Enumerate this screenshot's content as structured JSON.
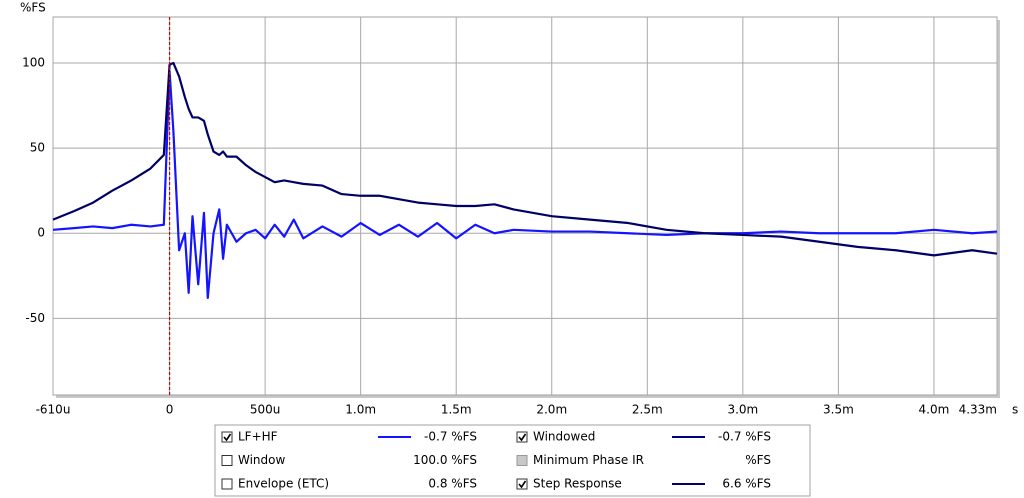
{
  "chart_data": {
    "type": "line",
    "y_label": "%FS",
    "x_label": "s",
    "xlim": [
      -0.61,
      4.33
    ],
    "ylim": [
      -95,
      127
    ],
    "xticks": [
      {
        "value": -0.61,
        "label": "-610u"
      },
      0,
      {
        "value": 0.5,
        "label": "500u"
      },
      {
        "value": 1,
        "label": "1.0m"
      },
      {
        "value": 1.5,
        "label": "1.5m"
      },
      {
        "value": 2,
        "label": "2.0m"
      },
      {
        "value": 2.5,
        "label": "2.5m"
      },
      {
        "value": 3,
        "label": "3.0m"
      },
      {
        "value": 3.5,
        "label": "3.5m"
      },
      {
        "value": 4,
        "label": "4.0m"
      },
      {
        "value": 4.33,
        "label": "4.33m"
      }
    ],
    "yticks": [
      -50,
      0,
      50,
      100
    ],
    "grid": true,
    "marker_x": 0,
    "x": [
      -0.61,
      -0.5,
      -0.4,
      -0.3,
      -0.2,
      -0.1,
      -0.03,
      0,
      0.02,
      0.05,
      0.08,
      0.1,
      0.12,
      0.15,
      0.18,
      0.2,
      0.23,
      0.26,
      0.28,
      0.3,
      0.35,
      0.4,
      0.45,
      0.5,
      0.55,
      0.6,
      0.65,
      0.7,
      0.8,
      0.9,
      1.0,
      1.1,
      1.2,
      1.3,
      1.4,
      1.5,
      1.6,
      1.7,
      1.8,
      2.0,
      2.2,
      2.4,
      2.6,
      2.8,
      3.0,
      3.2,
      3.4,
      3.6,
      3.8,
      4.0,
      4.2,
      4.33
    ],
    "series": [
      {
        "name": "LF+HF",
        "checked": true,
        "readout": "-0.7 %FS",
        "color": "#1414ff",
        "values": [
          2,
          3,
          4,
          3,
          5,
          4,
          5,
          95,
          60,
          -10,
          0,
          -35,
          10,
          -30,
          12,
          -38,
          0,
          14,
          -15,
          5,
          -5,
          0,
          2,
          -3,
          5,
          -2,
          8,
          -3,
          4,
          -2,
          6,
          -1,
          5,
          -2,
          6,
          -3,
          5,
          0,
          2,
          1,
          1,
          0,
          -1,
          0,
          0,
          1,
          0,
          0,
          0,
          2,
          0,
          1
        ]
      },
      {
        "name": "Window",
        "checked": false,
        "readout": "100.0 %FS"
      },
      {
        "name": "Envelope (ETC)",
        "checked": false,
        "readout": "0.8 %FS"
      },
      {
        "name": "Windowed",
        "checked": true,
        "readout": "-0.7 %FS",
        "color": "#000080"
      },
      {
        "name": "Minimum Phase IR",
        "checked": false,
        "disabled": true,
        "readout": "%FS"
      },
      {
        "name": "Step Response",
        "checked": true,
        "readout": "6.6 %FS",
        "color": "#000066",
        "values": [
          8,
          13,
          18,
          25,
          31,
          38,
          46,
          99,
          100,
          92,
          80,
          73,
          68,
          68,
          66,
          58,
          48,
          46,
          48,
          45,
          45,
          40,
          36,
          33,
          30,
          31,
          30,
          29,
          28,
          23,
          22,
          22,
          20,
          18,
          17,
          16,
          16,
          17,
          14,
          10,
          8,
          6,
          2,
          0,
          -1,
          -2,
          -5,
          -8,
          -10,
          -13,
          -10,
          -12
        ]
      }
    ]
  }
}
